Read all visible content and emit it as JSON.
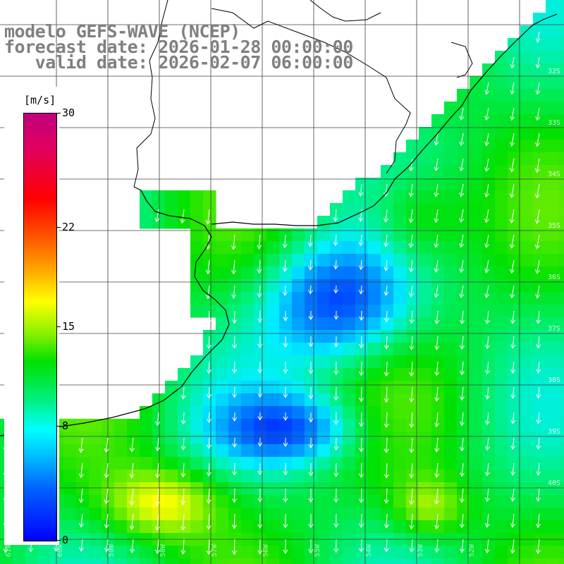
{
  "header": {
    "line1": "modelo GEFS-WAVE (NCEP)",
    "line2": "forecast date: 2026-01-28 00:00:00",
    "line3": "   valid date: 2026-02-07 06:00:00"
  },
  "colorbar": {
    "unit": "[m/s]",
    "ticks": [
      {
        "label": "30",
        "value": 30
      },
      {
        "label": "22",
        "value": 22
      },
      {
        "label": "15",
        "value": 15
      },
      {
        "label": "8",
        "value": 8
      },
      {
        "label": "0",
        "value": 0
      }
    ],
    "colors": [
      "#0000ff",
      "#00c0ff",
      "#00ffff",
      "#00e000",
      "#ffff00",
      "#ff6000",
      "#ff0000",
      "#c0007c"
    ]
  },
  "grid": {
    "lat_labels": [
      "32S",
      "33S",
      "34S",
      "35S",
      "36S",
      "37S",
      "38S",
      "39S",
      "40S"
    ],
    "lon_labels": [
      "61W",
      "60W",
      "59W",
      "58W",
      "57W",
      "56W",
      "55W",
      "54W",
      "53W",
      "52W"
    ]
  },
  "colors": {
    "background": "#ffffff",
    "coastline": "#000000",
    "gridline": "#404040",
    "arrow": "#ffffff",
    "title_text": "#808080"
  }
}
